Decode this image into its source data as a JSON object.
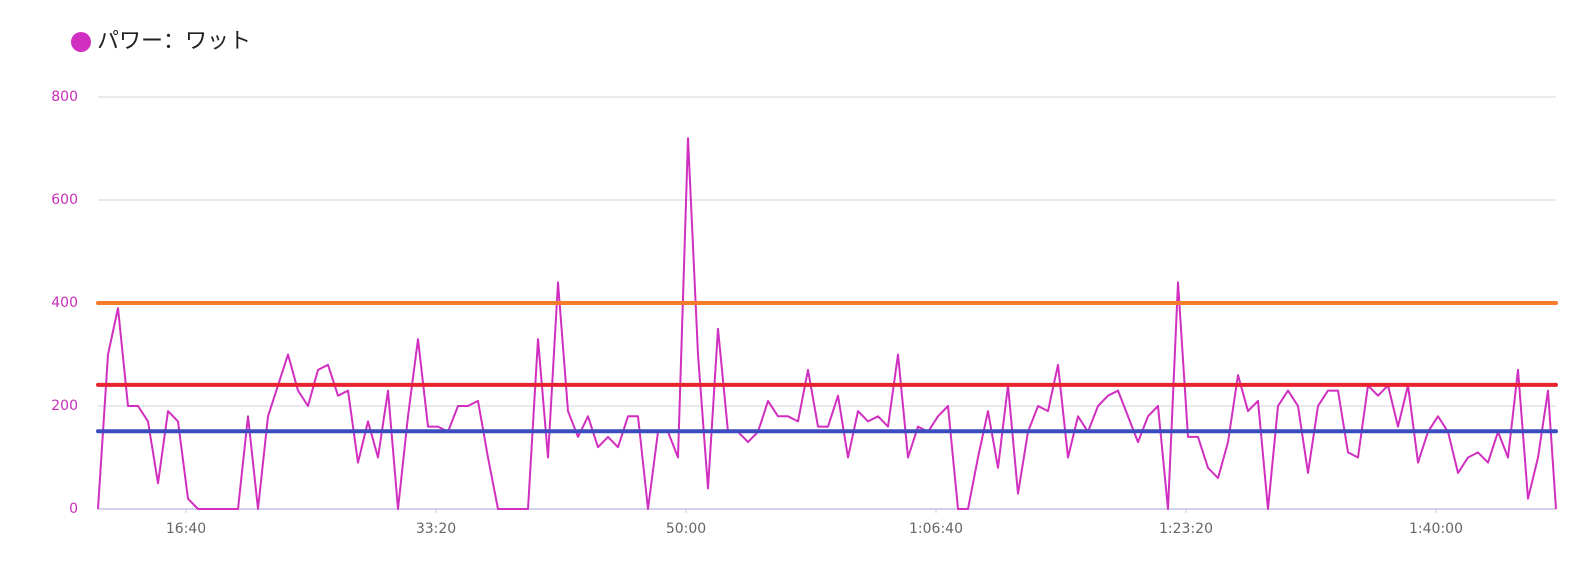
{
  "chart_data": {
    "type": "line",
    "x": [
      648,
      688,
      728,
      768,
      808,
      848,
      888,
      928,
      968,
      1008,
      1048,
      1088,
      1128,
      1168,
      1208,
      1248,
      1288,
      1328,
      1368,
      1408,
      1448,
      1488,
      1528,
      1568,
      1608,
      1648,
      1688,
      1728,
      1768,
      1808,
      1848,
      1888,
      1928,
      1968,
      2008,
      2048,
      2088,
      2128,
      2168,
      2208,
      2248,
      2288,
      2328,
      2368,
      2408,
      2448,
      2488,
      2528,
      2568,
      2608,
      2648,
      2688,
      2728,
      2768,
      2808,
      2848,
      2888,
      2928,
      2968,
      3008,
      3048,
      3088,
      3128,
      3168,
      3208,
      3248,
      3288,
      3328,
      3368,
      3408,
      3448,
      3488,
      3528,
      3568,
      3608,
      3648,
      3688,
      3728,
      3768,
      3808,
      3848,
      3888,
      3928,
      3968,
      4008,
      4048,
      4088,
      4128,
      4168,
      4208,
      4248,
      4288,
      4328,
      4368,
      4408,
      4448,
      4488,
      4528,
      4568,
      4608,
      4648,
      4688,
      4728,
      4768,
      4808,
      4848,
      4888,
      4928,
      4968,
      5008,
      5048,
      5088,
      5128,
      5168,
      5208,
      5248,
      5288,
      5328,
      5368,
      5408,
      5448,
      5488,
      5528,
      5568,
      5608,
      5648,
      5688,
      5728,
      5768,
      5808,
      5848,
      5888,
      5928,
      5968,
      6008,
      6048,
      6088,
      6128,
      6168,
      6208,
      6248,
      6288,
      6328,
      6368,
      6408,
      6448,
      6480
    ],
    "series": [
      {
        "name": "パワー：ワット",
        "color": "#d12fc0",
        "values": [
          0,
          300,
          390,
          200,
          200,
          170,
          50,
          190,
          170,
          20,
          0,
          0,
          0,
          0,
          0,
          180,
          0,
          180,
          240,
          300,
          230,
          200,
          270,
          280,
          220,
          230,
          90,
          170,
          100,
          230,
          0,
          180,
          330,
          160,
          160,
          150,
          200,
          200,
          210,
          100,
          0,
          0,
          0,
          0,
          330,
          100,
          440,
          190,
          140,
          180,
          120,
          140,
          120,
          180,
          180,
          0,
          150,
          150,
          100,
          720,
          300,
          40,
          350,
          150,
          150,
          130,
          150,
          210,
          180,
          180,
          170,
          270,
          160,
          160,
          220,
          100,
          190,
          170,
          180,
          160,
          300,
          100,
          160,
          150,
          180,
          200,
          0,
          0,
          100,
          190,
          80,
          240,
          30,
          150,
          200,
          190,
          280,
          100,
          180,
          150,
          200,
          220,
          230,
          180,
          130,
          180,
          200,
          0,
          440,
          140,
          140,
          80,
          60,
          130,
          260,
          190,
          210,
          0,
          200,
          230,
          200,
          70,
          200,
          230,
          230,
          110,
          100,
          240,
          220,
          240,
          160,
          240,
          90,
          150,
          180,
          150,
          70,
          100,
          110,
          90,
          150,
          100,
          270,
          20,
          100,
          230,
          0
        ]
      }
    ],
    "reference_lines": [
      {
        "value": 400,
        "color": "#f47c2c"
      },
      {
        "value": 241,
        "color": "#e8222e"
      },
      {
        "value": 151,
        "color": "#3a4cc0"
      }
    ],
    "xlim": [
      648,
      6480
    ],
    "xticks": [
      {
        "value": 1000,
        "label": "16:40"
      },
      {
        "value": 2000,
        "label": "33:20"
      },
      {
        "value": 3000,
        "label": "50:00"
      },
      {
        "value": 4000,
        "label": "1:06:40"
      },
      {
        "value": 5000,
        "label": "1:23:20"
      },
      {
        "value": 6000,
        "label": "1:40:00"
      }
    ],
    "ylim": [
      0,
      800
    ],
    "yticks": [
      0,
      200,
      400,
      600,
      800
    ],
    "grid": true
  }
}
